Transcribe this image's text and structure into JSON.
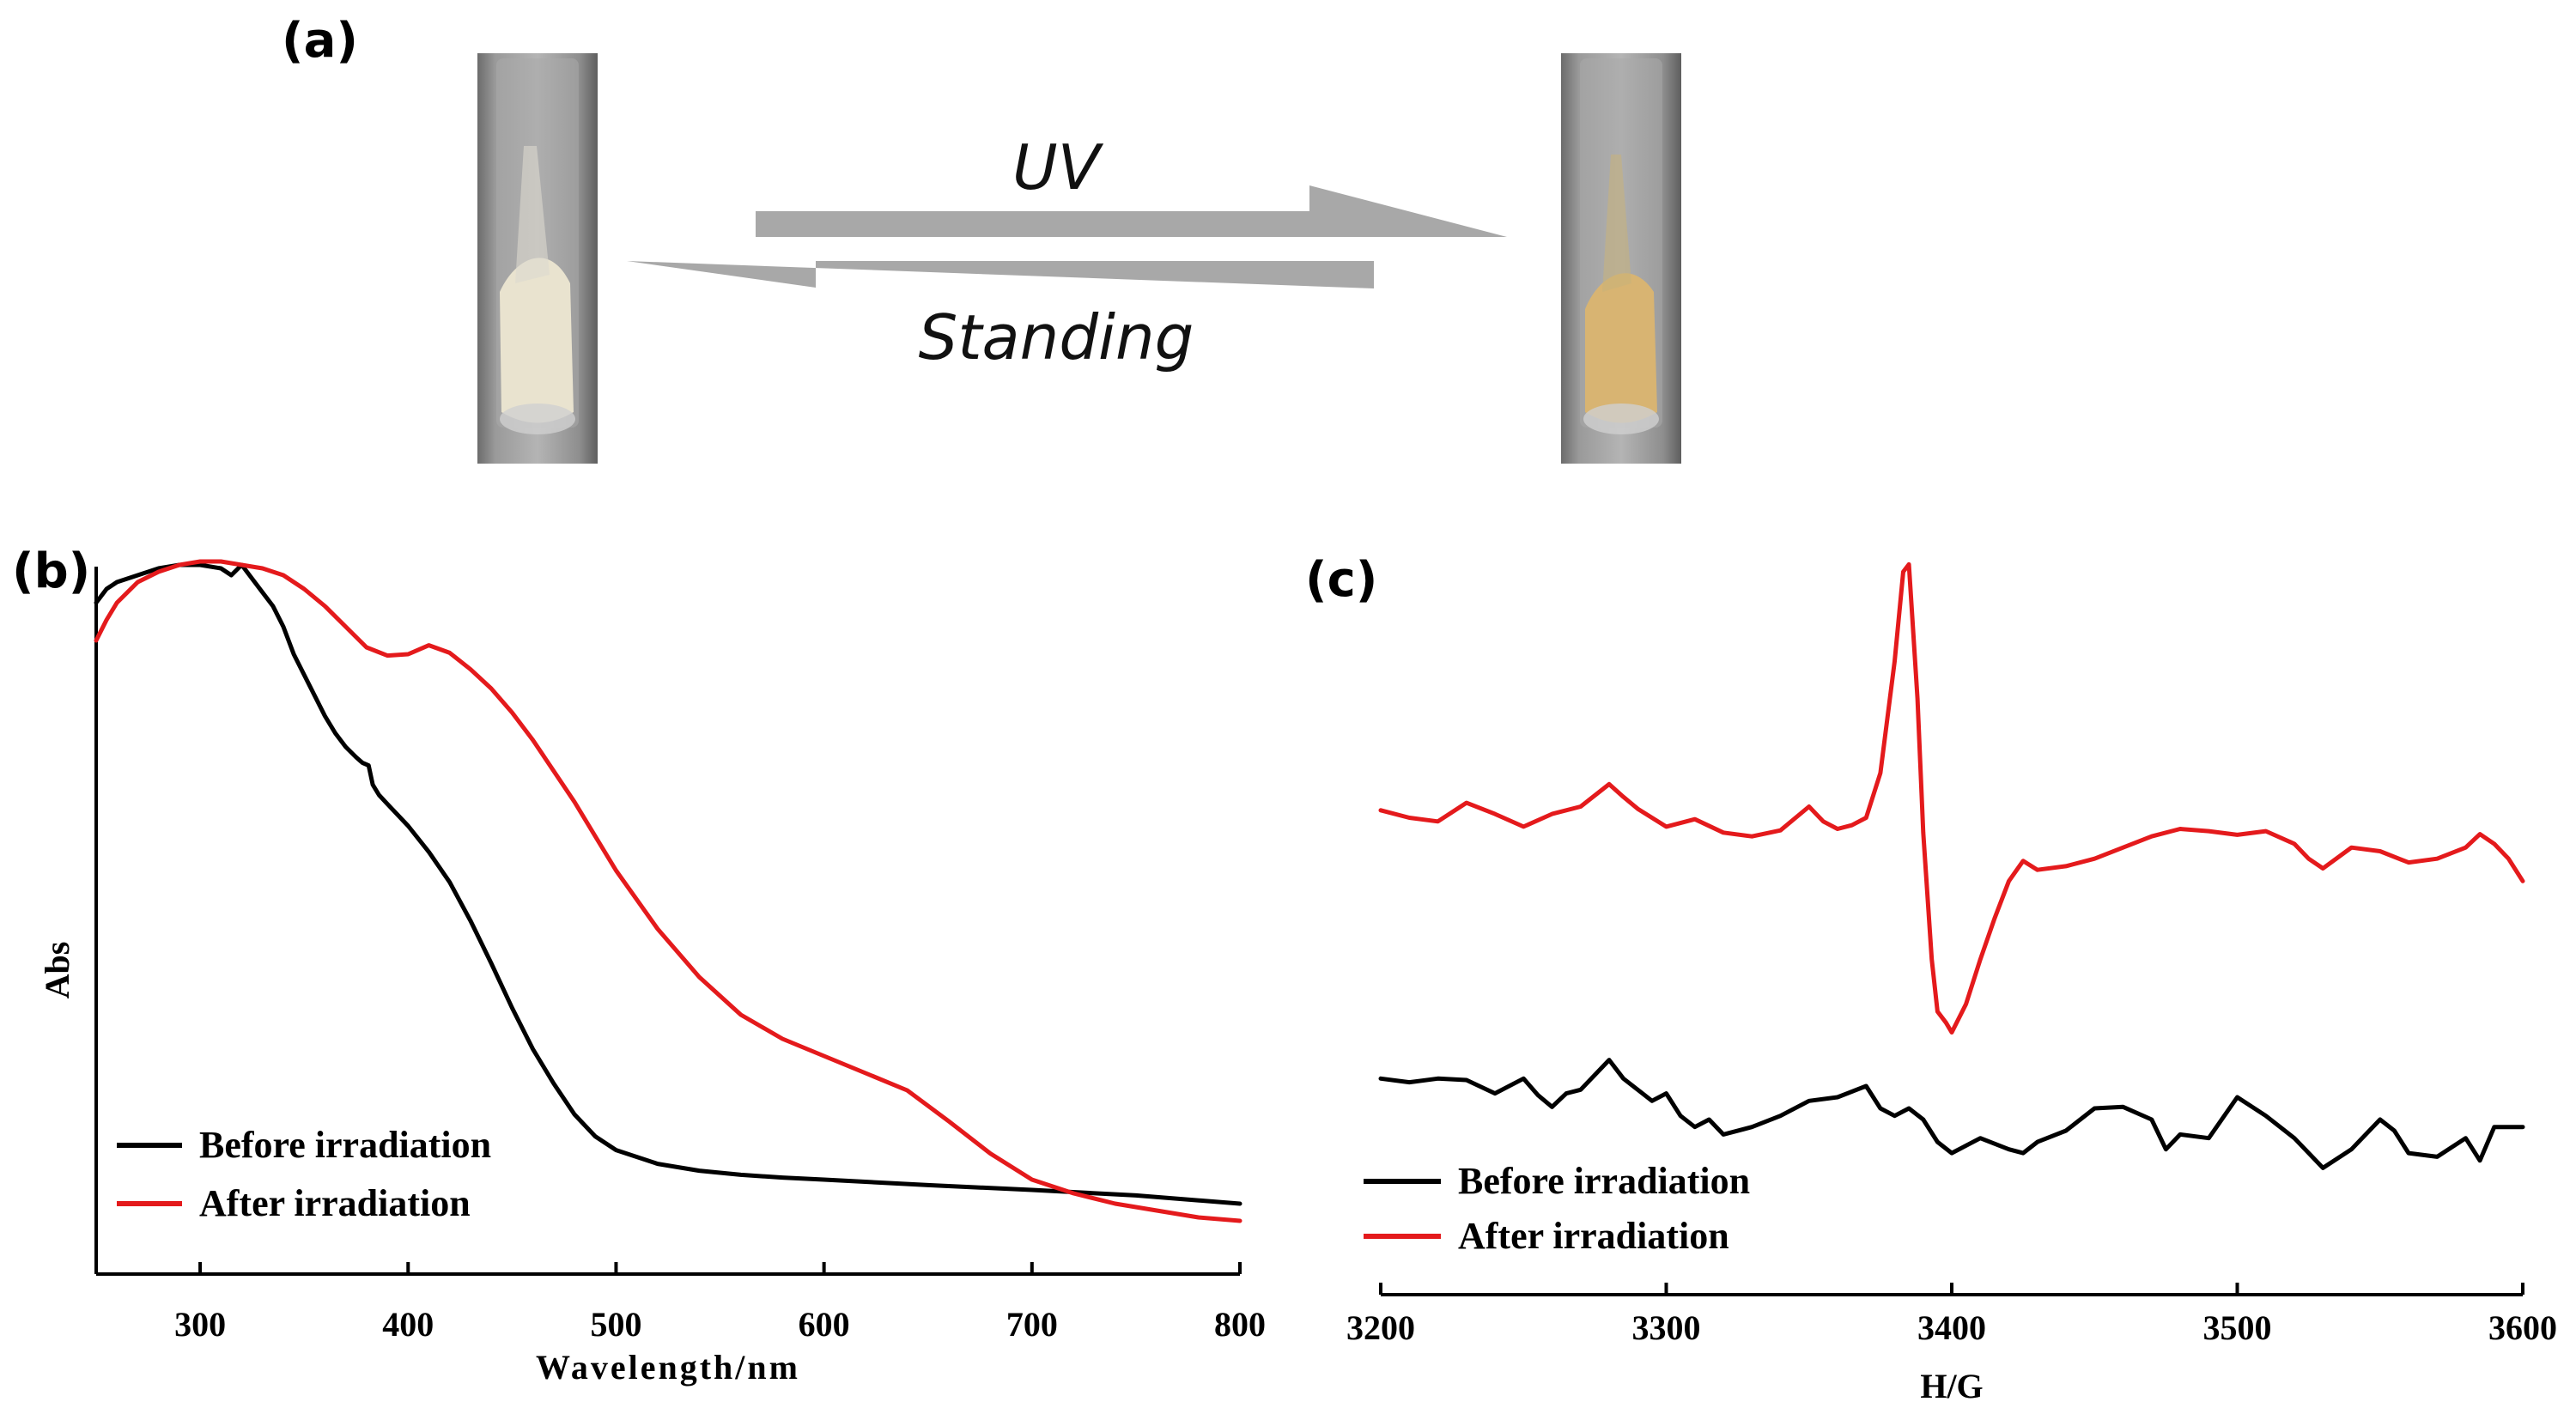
{
  "panel_a": {
    "label": "(a)",
    "forward_label": "UV",
    "reverse_label": "Standing",
    "tube_before_color": "#e9e3cf",
    "tube_after_color": "#d8b472",
    "arrow_color": "#a8a8a8"
  },
  "chart_data": [
    {
      "id": "b",
      "panel_label": "(b)",
      "type": "line",
      "xlabel": "Wavelength/nm",
      "ylabel": "Abs",
      "xlim": [
        250,
        800
      ],
      "ylim": [
        0,
        1
      ],
      "xticks": [
        "300",
        "400",
        "500",
        "600",
        "700",
        "800"
      ],
      "legend_position": "bottom-left",
      "series": [
        {
          "name": "Before irradiation",
          "color": "#000000",
          "x": [
            250,
            255,
            260,
            270,
            280,
            290,
            300,
            310,
            315,
            320,
            325,
            330,
            335,
            340,
            345,
            350,
            355,
            360,
            365,
            370,
            375,
            378,
            381,
            383,
            386,
            390,
            400,
            410,
            420,
            430,
            440,
            450,
            460,
            470,
            480,
            490,
            500,
            520,
            540,
            560,
            580,
            600,
            650,
            700,
            750,
            800
          ],
          "y": [
            0.935,
            0.955,
            0.965,
            0.975,
            0.985,
            0.99,
            0.99,
            0.985,
            0.975,
            0.99,
            0.97,
            0.95,
            0.93,
            0.9,
            0.86,
            0.83,
            0.8,
            0.77,
            0.745,
            0.725,
            0.71,
            0.702,
            0.698,
            0.67,
            0.655,
            0.642,
            0.61,
            0.572,
            0.528,
            0.472,
            0.41,
            0.345,
            0.285,
            0.235,
            0.19,
            0.158,
            0.138,
            0.118,
            0.108,
            0.102,
            0.098,
            0.095,
            0.087,
            0.08,
            0.072,
            0.06
          ]
        },
        {
          "name": "After irradiation",
          "color": "#e41a1c",
          "x": [
            250,
            255,
            260,
            270,
            280,
            290,
            300,
            310,
            320,
            330,
            340,
            350,
            360,
            370,
            380,
            390,
            400,
            410,
            420,
            430,
            440,
            450,
            460,
            470,
            480,
            490,
            500,
            520,
            540,
            560,
            580,
            600,
            620,
            640,
            660,
            680,
            700,
            720,
            740,
            760,
            780,
            800
          ],
          "y": [
            0.88,
            0.91,
            0.935,
            0.965,
            0.98,
            0.99,
            0.995,
            0.995,
            0.99,
            0.985,
            0.975,
            0.955,
            0.93,
            0.9,
            0.87,
            0.858,
            0.86,
            0.873,
            0.862,
            0.838,
            0.81,
            0.775,
            0.735,
            0.69,
            0.645,
            0.595,
            0.545,
            0.46,
            0.39,
            0.335,
            0.3,
            0.275,
            0.25,
            0.225,
            0.18,
            0.133,
            0.095,
            0.075,
            0.06,
            0.05,
            0.04,
            0.035
          ]
        }
      ]
    },
    {
      "id": "c",
      "panel_label": "(c)",
      "type": "line",
      "xlabel": "H/G",
      "ylabel": "",
      "xlim": [
        3200,
        3600
      ],
      "ylim": [
        0,
        1
      ],
      "xticks": [
        "3200",
        "3300",
        "3400",
        "3500",
        "3600"
      ],
      "legend_position": "bottom-left",
      "series": [
        {
          "name": "Before irradiation",
          "color": "#000000",
          "x": [
            3200,
            3210,
            3220,
            3230,
            3240,
            3250,
            3255,
            3260,
            3265,
            3270,
            3280,
            3285,
            3290,
            3295,
            3300,
            3305,
            3310,
            3315,
            3320,
            3330,
            3340,
            3350,
            3360,
            3370,
            3375,
            3380,
            3385,
            3390,
            3395,
            3400,
            3410,
            3420,
            3425,
            3430,
            3440,
            3450,
            3460,
            3470,
            3475,
            3480,
            3490,
            3500,
            3510,
            3520,
            3530,
            3540,
            3550,
            3555,
            3560,
            3570,
            3580,
            3585,
            3590,
            3600
          ],
          "y": [
            0.29,
            0.285,
            0.29,
            0.288,
            0.27,
            0.29,
            0.268,
            0.252,
            0.27,
            0.275,
            0.315,
            0.29,
            0.275,
            0.26,
            0.27,
            0.24,
            0.225,
            0.235,
            0.215,
            0.225,
            0.24,
            0.26,
            0.265,
            0.28,
            0.25,
            0.24,
            0.25,
            0.235,
            0.205,
            0.19,
            0.21,
            0.195,
            0.19,
            0.205,
            0.22,
            0.25,
            0.252,
            0.235,
            0.195,
            0.215,
            0.21,
            0.265,
            0.24,
            0.21,
            0.17,
            0.195,
            0.235,
            0.22,
            0.19,
            0.185,
            0.21,
            0.18,
            0.225,
            0.225
          ]
        },
        {
          "name": "After irradiation",
          "color": "#e41a1c",
          "x": [
            3200,
            3210,
            3220,
            3230,
            3240,
            3250,
            3260,
            3270,
            3280,
            3285,
            3290,
            3300,
            3310,
            3320,
            3330,
            3340,
            3350,
            3355,
            3360,
            3365,
            3370,
            3375,
            3380,
            3383,
            3385,
            3388,
            3390,
            3393,
            3395,
            3398,
            3400,
            3405,
            3410,
            3415,
            3420,
            3425,
            3430,
            3440,
            3450,
            3460,
            3470,
            3480,
            3490,
            3500,
            3510,
            3520,
            3525,
            3530,
            3540,
            3550,
            3560,
            3570,
            3580,
            3585,
            3590,
            3595,
            3600
          ],
          "y": [
            0.65,
            0.64,
            0.635,
            0.66,
            0.645,
            0.628,
            0.645,
            0.655,
            0.685,
            0.668,
            0.652,
            0.628,
            0.638,
            0.62,
            0.615,
            0.623,
            0.655,
            0.635,
            0.625,
            0.63,
            0.64,
            0.7,
            0.85,
            0.97,
            0.98,
            0.8,
            0.62,
            0.45,
            0.38,
            0.365,
            0.352,
            0.39,
            0.45,
            0.505,
            0.555,
            0.582,
            0.57,
            0.575,
            0.585,
            0.6,
            0.615,
            0.625,
            0.622,
            0.617,
            0.622,
            0.605,
            0.585,
            0.572,
            0.6,
            0.595,
            0.58,
            0.585,
            0.6,
            0.618,
            0.605,
            0.585,
            0.555
          ]
        }
      ]
    }
  ]
}
